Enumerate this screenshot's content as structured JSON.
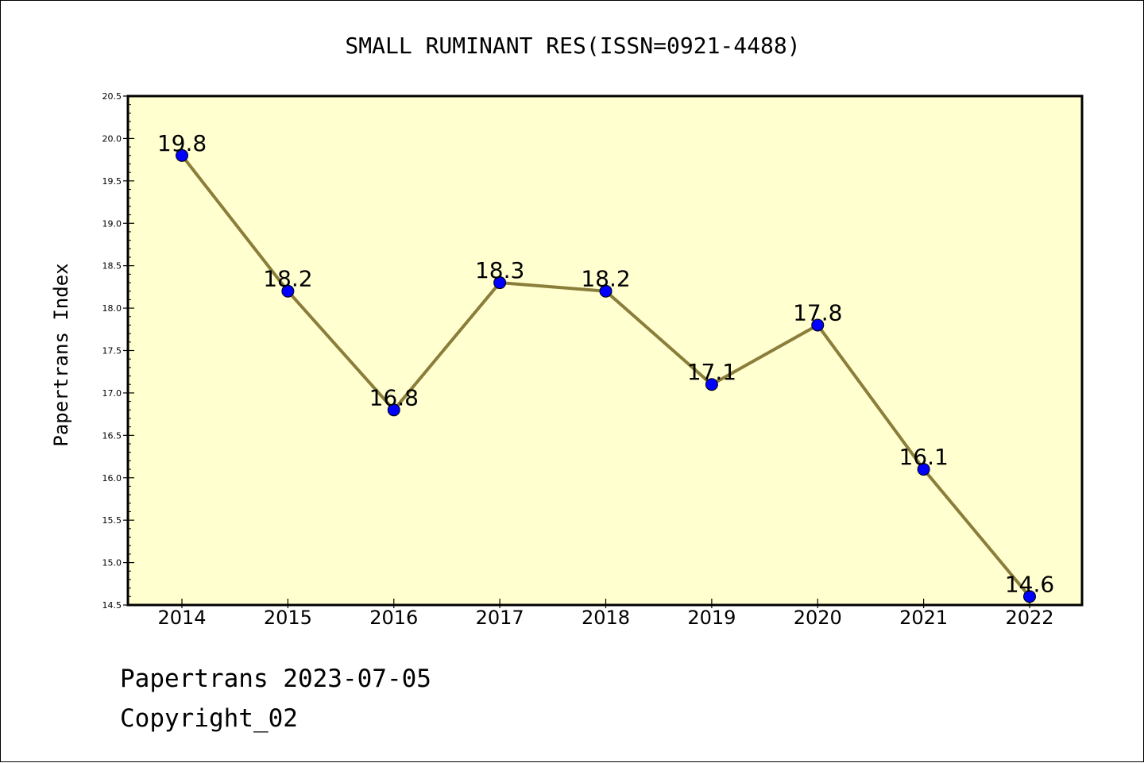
{
  "chart_data": {
    "type": "line",
    "title": "SMALL RUMINANT RES(ISSN=0921-4488)",
    "xlabel": "",
    "ylabel": "Papertrans Index",
    "categories": [
      "2014",
      "2015",
      "2016",
      "2017",
      "2018",
      "2019",
      "2020",
      "2021",
      "2022"
    ],
    "series": [
      {
        "values": [
          19.8,
          18.2,
          16.8,
          18.3,
          18.2,
          17.1,
          17.8,
          16.1,
          14.6
        ]
      }
    ],
    "data_labels": [
      "19.8",
      "18.2",
      "16.8",
      "18.3",
      "18.2",
      "17.1",
      "17.8",
      "16.1",
      "14.6"
    ],
    "ylim": [
      14.5,
      20.5
    ],
    "y_ticks": [
      "14.5",
      "15.0",
      "15.5",
      "16.0",
      "16.5",
      "17.0",
      "17.5",
      "18.0",
      "18.5",
      "19.0",
      "19.5",
      "20.0",
      "20.5"
    ],
    "grid": false,
    "legend": "none",
    "colors": {
      "plot_background": "#ffffd0",
      "line": "#8b7d3a",
      "marker": "#0000ff",
      "axis": "#000000"
    }
  },
  "footer": {
    "line1": "Papertrans 2023-07-05",
    "line2": "Copyright_02"
  }
}
